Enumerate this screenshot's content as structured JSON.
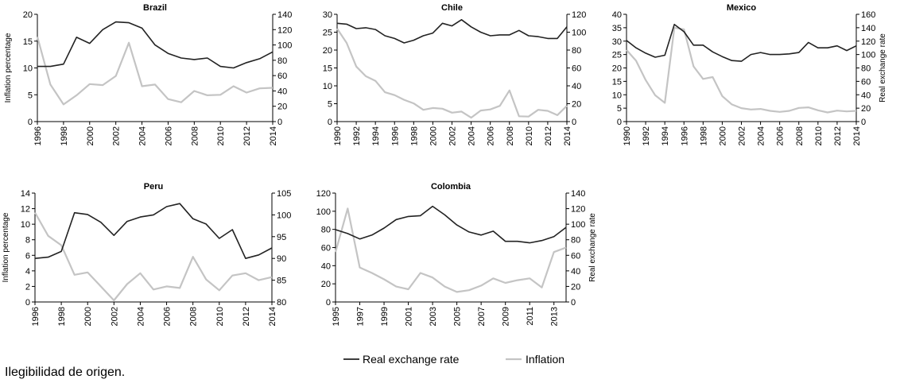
{
  "series_names": {
    "rer": "Real exchange rate",
    "inflation": "Inflation"
  },
  "colors": {
    "rer": "#222222",
    "inflation": "#c4c4c4"
  },
  "footer": "Ilegibilidad de origen.",
  "chart_data": [
    {
      "type": "line",
      "title": "Brazil",
      "ylabel_left": "Inflation percentage",
      "ylabel_right": "",
      "ylim_left": [
        0,
        20
      ],
      "ylim_right": [
        0,
        140
      ],
      "yticks_left": [
        0,
        5,
        10,
        15,
        20
      ],
      "yticks_right": [
        0,
        20,
        40,
        60,
        80,
        100,
        120,
        140
      ],
      "xlim": [
        1996,
        2014
      ],
      "xticks": [
        1996,
        1998,
        2000,
        2002,
        2004,
        2006,
        2008,
        2010,
        2012,
        2014
      ],
      "series": [
        {
          "name": "Inflation",
          "axis": "left",
          "x": [
            1996,
            1997,
            1998,
            1999,
            2000,
            2001,
            2002,
            2003,
            2004,
            2005,
            2006,
            2007,
            2008,
            2009,
            2010,
            2011,
            2012,
            2013,
            2014
          ],
          "values": [
            15.8,
            6.9,
            3.2,
            4.9,
            7.0,
            6.8,
            8.5,
            14.7,
            6.6,
            6.9,
            4.2,
            3.6,
            5.7,
            4.9,
            5.0,
            6.6,
            5.4,
            6.2,
            6.3
          ]
        },
        {
          "name": "Real exchange rate",
          "axis": "right",
          "x": [
            1996,
            1997,
            1998,
            1999,
            2000,
            2001,
            2002,
            2003,
            2004,
            2005,
            2006,
            2007,
            2008,
            2009,
            2010,
            2011,
            2012,
            2013,
            2014
          ],
          "values": [
            72,
            72,
            75,
            110,
            102,
            120,
            130,
            129,
            122,
            100,
            89,
            83,
            81,
            83,
            72,
            70,
            77,
            82,
            91
          ]
        }
      ]
    },
    {
      "type": "line",
      "title": "Chile",
      "ylabel_left": "",
      "ylabel_right": "",
      "ylim_left": [
        0,
        30
      ],
      "ylim_right": [
        0,
        120
      ],
      "yticks_left": [
        0,
        5,
        10,
        15,
        20,
        25,
        30
      ],
      "yticks_right": [
        0,
        20,
        40,
        60,
        80,
        100,
        120
      ],
      "xlim": [
        1990,
        2014
      ],
      "xticks": [
        1990,
        1992,
        1994,
        1996,
        1998,
        2000,
        2002,
        2004,
        2006,
        2008,
        2010,
        2012,
        2014
      ],
      "series": [
        {
          "name": "Inflation",
          "axis": "left",
          "x": [
            1990,
            1991,
            1992,
            1993,
            1994,
            1995,
            1996,
            1997,
            1998,
            1999,
            2000,
            2001,
            2002,
            2003,
            2004,
            2005,
            2006,
            2007,
            2008,
            2009,
            2010,
            2011,
            2012,
            2013,
            2014
          ],
          "values": [
            26,
            22,
            15.4,
            12.7,
            11.4,
            8.2,
            7.4,
            6.1,
            5.1,
            3.3,
            3.8,
            3.6,
            2.5,
            2.8,
            1.1,
            3.1,
            3.4,
            4.4,
            8.7,
            1.5,
            1.4,
            3.3,
            3.0,
            1.8,
            4.4
          ]
        },
        {
          "name": "Real exchange rate",
          "axis": "right",
          "x": [
            1990,
            1991,
            1992,
            1993,
            1994,
            1995,
            1996,
            1997,
            1998,
            1999,
            2000,
            2001,
            2002,
            2003,
            2004,
            2005,
            2006,
            2007,
            2008,
            2009,
            2010,
            2011,
            2012,
            2013,
            2014
          ],
          "values": [
            110,
            109,
            104,
            105,
            103,
            96,
            93,
            88,
            91,
            96,
            99,
            110,
            107,
            114,
            106,
            100,
            96,
            97,
            97,
            102,
            96,
            95,
            93,
            93,
            106
          ]
        }
      ]
    },
    {
      "type": "line",
      "title": "Mexico",
      "ylabel_left": "",
      "ylabel_right": "Real exchange rate",
      "ylim_left": [
        0,
        40
      ],
      "ylim_right": [
        0,
        160
      ],
      "yticks_left": [
        0,
        5,
        10,
        15,
        20,
        25,
        30,
        35,
        40
      ],
      "yticks_right": [
        0,
        20,
        40,
        60,
        80,
        100,
        120,
        140,
        160
      ],
      "xlim": [
        1990,
        2014
      ],
      "xticks": [
        1990,
        1992,
        1994,
        1996,
        1998,
        2000,
        2002,
        2004,
        2006,
        2008,
        2010,
        2012,
        2014
      ],
      "series": [
        {
          "name": "Inflation",
          "axis": "left",
          "x": [
            1990,
            1991,
            1992,
            1993,
            1994,
            1995,
            1996,
            1997,
            1998,
            1999,
            2000,
            2001,
            2002,
            2003,
            2004,
            2005,
            2006,
            2007,
            2008,
            2009,
            2010,
            2011,
            2012,
            2013,
            2014
          ],
          "values": [
            26.7,
            22.7,
            15.5,
            9.8,
            7.0,
            35.0,
            34.4,
            20.6,
            15.9,
            16.6,
            9.5,
            6.4,
            5.0,
            4.5,
            4.7,
            4.0,
            3.6,
            4.0,
            5.1,
            5.3,
            4.2,
            3.4,
            4.1,
            3.8,
            4.0
          ]
        },
        {
          "name": "Real exchange rate",
          "axis": "right",
          "x": [
            1990,
            1991,
            1992,
            1993,
            1994,
            1995,
            1996,
            1997,
            1998,
            1999,
            2000,
            2001,
            2002,
            2003,
            2004,
            2005,
            2006,
            2007,
            2008,
            2009,
            2010,
            2011,
            2012,
            2013,
            2014
          ],
          "values": [
            121,
            110,
            102,
            96,
            99,
            145,
            134,
            114,
            114,
            104,
            97,
            91,
            90,
            100,
            103,
            100,
            100,
            101,
            103,
            118,
            110,
            110,
            113,
            106,
            113
          ]
        }
      ]
    },
    {
      "type": "line",
      "title": "Peru",
      "ylabel_left": "Inflation percentage",
      "ylabel_right": "",
      "ylim_left": [
        0,
        14
      ],
      "ylim_right": [
        80,
        105
      ],
      "yticks_left": [
        0,
        2,
        4,
        6,
        8,
        10,
        12,
        14
      ],
      "yticks_right": [
        80,
        85,
        90,
        95,
        100,
        105
      ],
      "xlim": [
        1996,
        2014
      ],
      "xticks": [
        1996,
        1998,
        2000,
        2002,
        2004,
        2006,
        2008,
        2010,
        2012,
        2014
      ],
      "series": [
        {
          "name": "Inflation",
          "axis": "left",
          "x": [
            1996,
            1997,
            1998,
            1999,
            2000,
            2001,
            2002,
            2003,
            2004,
            2005,
            2006,
            2007,
            2008,
            2009,
            2010,
            2011,
            2012,
            2013,
            2014
          ],
          "values": [
            11.5,
            8.5,
            7.3,
            3.5,
            3.8,
            2.0,
            0.2,
            2.3,
            3.7,
            1.6,
            2.0,
            1.8,
            5.8,
            2.9,
            1.5,
            3.4,
            3.7,
            2.8,
            3.2
          ]
        },
        {
          "name": "Real exchange rate",
          "axis": "right",
          "x": [
            1996,
            1997,
            1998,
            1999,
            2000,
            2001,
            2002,
            2003,
            2004,
            2005,
            2006,
            2007,
            2008,
            2009,
            2010,
            2011,
            2012,
            2013,
            2014
          ],
          "values": [
            90,
            90.3,
            91.6,
            100.5,
            100.1,
            98.3,
            95.3,
            98.5,
            99.5,
            100,
            101.9,
            102.6,
            99.1,
            97.9,
            94.6,
            96.6,
            90,
            90.8,
            92.4
          ]
        }
      ]
    },
    {
      "type": "line",
      "title": "Colombia",
      "ylabel_left": "",
      "ylabel_right": "Real exchange rate",
      "ylim_left": [
        0,
        120
      ],
      "ylim_right": [
        0,
        140
      ],
      "yticks_left": [
        0,
        20,
        40,
        60,
        80,
        100,
        120
      ],
      "yticks_right": [
        0,
        20,
        40,
        60,
        80,
        100,
        120,
        140
      ],
      "xlim": [
        1995,
        2014
      ],
      "xticks": [
        1995,
        1997,
        1999,
        2001,
        2003,
        2005,
        2007,
        2009,
        2011,
        2013
      ],
      "series": [
        {
          "name": "Inflation",
          "axis": "left",
          "x": [
            1995,
            1996,
            1997,
            1998,
            1999,
            2000,
            2001,
            2002,
            2003,
            2004,
            2005,
            2006,
            2007,
            2008,
            2009,
            2010,
            2011,
            2012,
            2013,
            2014
          ],
          "values": [
            55,
            103,
            38,
            32,
            25,
            17,
            14,
            32,
            27,
            17,
            11,
            13,
            18,
            26,
            21,
            24,
            26,
            16,
            55,
            60
          ]
        },
        {
          "name": "Real exchange rate",
          "axis": "right",
          "x": [
            1995,
            1996,
            1997,
            1998,
            1999,
            2000,
            2001,
            2002,
            2003,
            2004,
            2005,
            2006,
            2007,
            2008,
            2009,
            2010,
            2011,
            2012,
            2013,
            2014
          ],
          "values": [
            93,
            88,
            81,
            86,
            95,
            106,
            110,
            111,
            123,
            112,
            99,
            90,
            86,
            91,
            78,
            78,
            76,
            79,
            84,
            96
          ]
        }
      ]
    }
  ]
}
